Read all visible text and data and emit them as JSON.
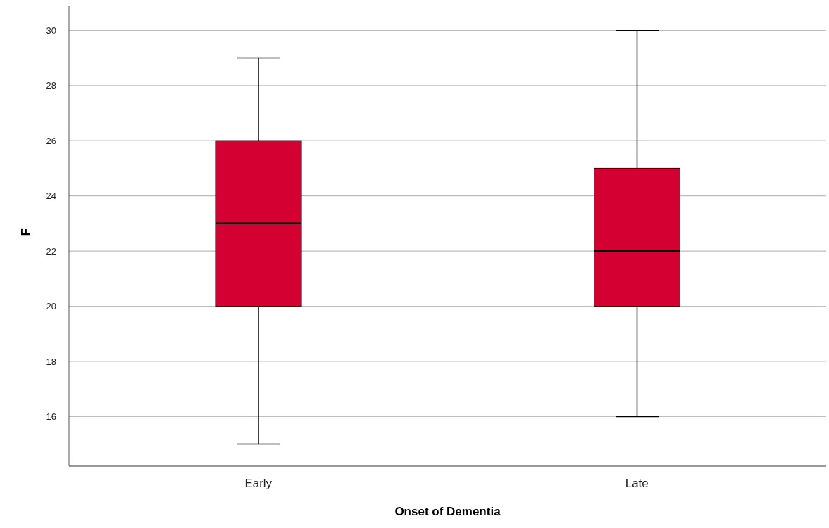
{
  "chart_data": {
    "type": "box",
    "xlabel": "Onset of Dementia",
    "ylabel": "F",
    "categories": [
      "Early",
      "Late"
    ],
    "boxes": [
      {
        "low": 15,
        "q1": 20,
        "median": 23,
        "q3": 26,
        "high": 29
      },
      {
        "low": 16,
        "q1": 20,
        "median": 22,
        "q3": 25,
        "high": 30
      }
    ],
    "color": "#d50032",
    "ylim": [
      14.2,
      30.9
    ],
    "yticks": [
      16,
      18,
      20,
      22,
      24,
      26,
      28,
      30
    ],
    "grid": "y"
  }
}
